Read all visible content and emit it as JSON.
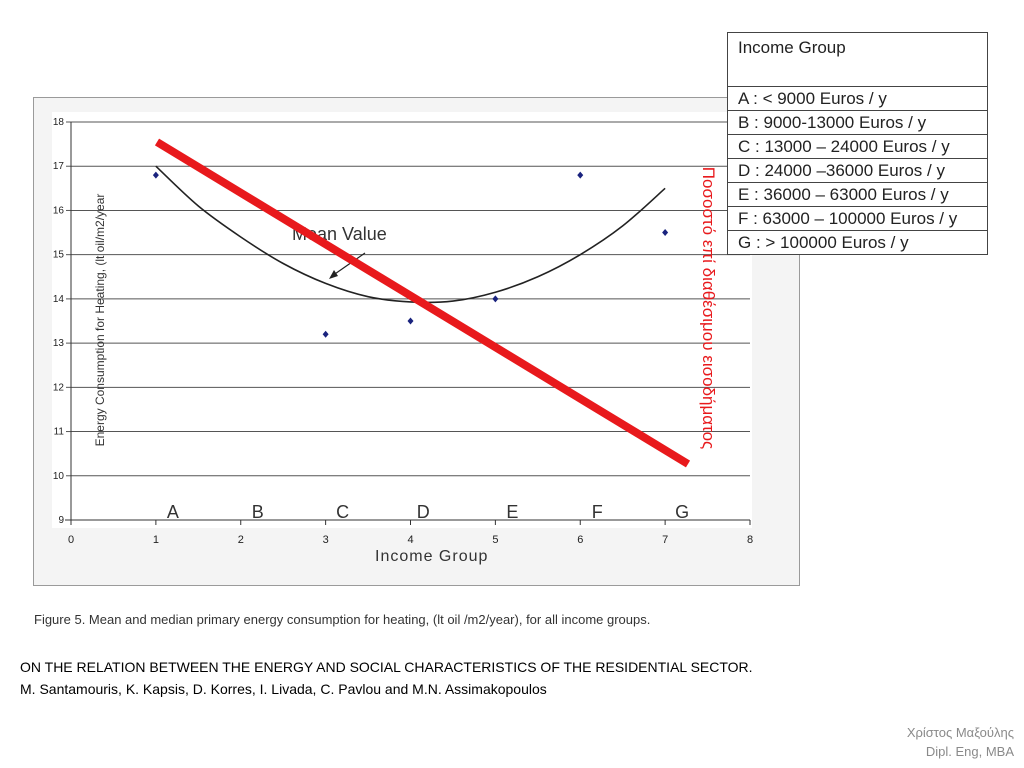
{
  "chart_data": {
    "type": "scatter",
    "xlabel": "Income Group",
    "ylabel": "Energy Consumption for Heating, (lt oil/m2/year",
    "xlim": [
      0,
      8
    ],
    "ylim": [
      9,
      18
    ],
    "x_ticks": [
      "0",
      "1",
      "2",
      "3",
      "4",
      "5",
      "6",
      "7",
      "8"
    ],
    "y_ticks": [
      "9",
      "10",
      "11",
      "12",
      "13",
      "14",
      "15",
      "16",
      "17",
      "18"
    ],
    "groups": [
      {
        "letter": "A",
        "x": 1.2
      },
      {
        "letter": "B",
        "x": 2.2
      },
      {
        "letter": "C",
        "x": 3.2
      },
      {
        "letter": "D",
        "x": 4.15
      },
      {
        "letter": "E",
        "x": 5.2
      },
      {
        "letter": "F",
        "x": 6.2
      },
      {
        "letter": "G",
        "x": 7.2
      }
    ],
    "points": [
      {
        "x": 1,
        "y": 16.8
      },
      {
        "x": 3,
        "y": 13.2
      },
      {
        "x": 4,
        "y": 13.5
      },
      {
        "x": 5,
        "y": 14.0
      },
      {
        "x": 6,
        "y": 16.8
      },
      {
        "x": 7,
        "y": 15.5
      }
    ],
    "mean_curve": [
      {
        "x": 1.0,
        "y": 17.0
      },
      {
        "x": 1.5,
        "y": 16.1
      },
      {
        "x": 2.0,
        "y": 15.4
      },
      {
        "x": 2.5,
        "y": 14.8
      },
      {
        "x": 3.0,
        "y": 14.35
      },
      {
        "x": 3.5,
        "y": 14.05
      },
      {
        "x": 4.0,
        "y": 13.93
      },
      {
        "x": 4.5,
        "y": 13.95
      },
      {
        "x": 5.0,
        "y": 14.15
      },
      {
        "x": 5.5,
        "y": 14.5
      },
      {
        "x": 6.0,
        "y": 15.0
      },
      {
        "x": 6.5,
        "y": 15.65
      },
      {
        "x": 7.0,
        "y": 16.5
      }
    ],
    "annotation": "Mean Value",
    "grid": true,
    "overlay_color": "#e8191c",
    "overlay_label": "Ποσοστό επί διαθέσιμου εισοδήματος"
  },
  "legend": {
    "header": "Income Group",
    "rows": [
      "A : < 9000 Euros / y",
      "B : 9000-13000 Euros / y",
      "C : 13000 – 24000 Euros / y",
      "D : 24000 –36000 Euros / y",
      "E : 36000 – 63000 Euros / y",
      "F : 63000 – 100000 Euros / y",
      "G : > 100000 Euros / y"
    ]
  },
  "caption": "Figure 5. Mean and median primary energy consumption for heating, (lt oil /m2/year), for all income groups.",
  "reference": {
    "title": "ON THE RELATION BETWEEN THE ENERGY AND SOCIAL CHARACTERISTICS OF THE RESIDENTIAL SECTOR.",
    "authors": "M. Santamouris, K. Kapsis, D. Korres, I. Livada, C. Pavlou and M.N. Assimakopoulos"
  },
  "author": {
    "name": "Χρίστος Μαξούλης",
    "title": "Dipl. Eng, MBA"
  }
}
